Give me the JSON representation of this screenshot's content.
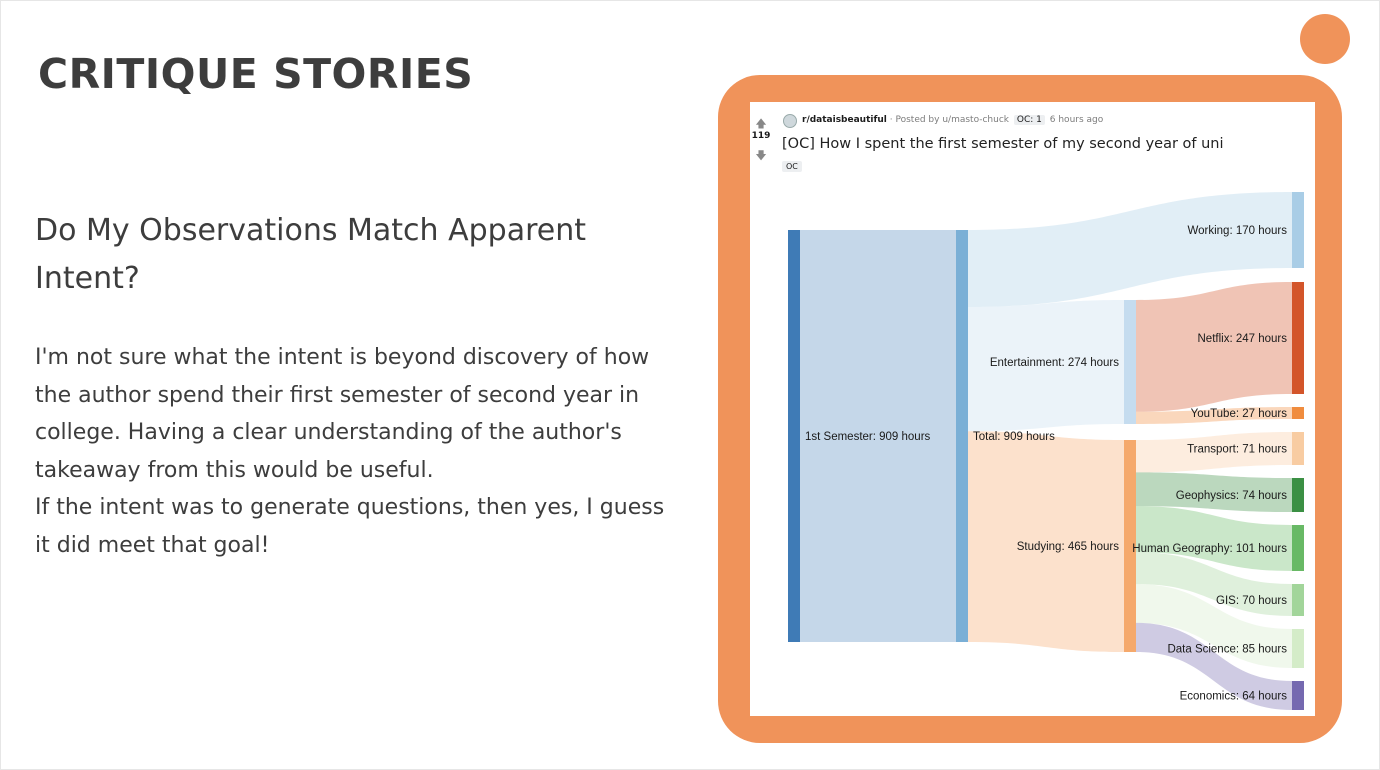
{
  "slide": {
    "title": "CRITIQUE STORIES",
    "subtitle": "Do My Observations Match Apparent Intent?",
    "paragraphs": [
      "I'm not sure what the intent is beyond discovery of how the author spend their first semester of second year in college. Having a clear understanding of the author's takeaway from this would be useful.",
      "If the intent was to generate questions, then yes, I guess it did meet that goal!"
    ],
    "accent_color": "#f0935a"
  },
  "post": {
    "votes": "119",
    "upvote_icon": "arrow-up-icon",
    "downvote_icon": "arrow-down-icon",
    "subreddit": "r/dataisbeautiful",
    "posted_by": "· Posted by u/masto-chuck",
    "user_flair": "OC: 1",
    "time_ago": "6 hours ago",
    "title": "[OC] How I spent the first semester of my second year of uni",
    "tag": "OC"
  },
  "chart_data": {
    "type": "sankey",
    "nodes": [
      {
        "id": "semester",
        "label": "1st Semester: 909 hours",
        "value": 909,
        "color": "#3f7bb6"
      },
      {
        "id": "total",
        "label": "Total: 909 hours",
        "value": 909,
        "color": "#7aafd6"
      },
      {
        "id": "working",
        "label": "Working: 170 hours",
        "value": 170,
        "color": "#a9cde6"
      },
      {
        "id": "entertainment",
        "label": "Entertainment: 274 hours",
        "value": 274,
        "color": "#c5dcef"
      },
      {
        "id": "studying",
        "label": "Studying: 465 hours",
        "value": 465,
        "color": "#f5a96c"
      },
      {
        "id": "netflix",
        "label": "Netflix: 247 hours",
        "value": 247,
        "color": "#d3552a"
      },
      {
        "id": "youtube",
        "label": "YouTube: 27 hours",
        "value": 27,
        "color": "#f08c3e"
      },
      {
        "id": "transport",
        "label": "Transport: 71 hours",
        "value": 71,
        "color": "#f8cca2"
      },
      {
        "id": "geophysics",
        "label": "Geophysics: 74 hours",
        "value": 74,
        "color": "#3b9044"
      },
      {
        "id": "humangeo",
        "label": "Human Geography: 101 hours",
        "value": 101,
        "color": "#68b965"
      },
      {
        "id": "gis",
        "label": "GIS: 70 hours",
        "value": 70,
        "color": "#a2d59a"
      },
      {
        "id": "datascience",
        "label": "Data Science: 85 hours",
        "value": 85,
        "color": "#d4ecc8"
      },
      {
        "id": "economics",
        "label": "Economics: 64 hours",
        "value": 64,
        "color": "#7569b0"
      }
    ],
    "links": [
      {
        "source": "semester",
        "target": "total",
        "value": 909
      },
      {
        "source": "total",
        "target": "working",
        "value": 170
      },
      {
        "source": "total",
        "target": "entertainment",
        "value": 274
      },
      {
        "source": "total",
        "target": "studying",
        "value": 465
      },
      {
        "source": "entertainment",
        "target": "netflix",
        "value": 247
      },
      {
        "source": "entertainment",
        "target": "youtube",
        "value": 27
      },
      {
        "source": "studying",
        "target": "transport",
        "value": 71
      },
      {
        "source": "studying",
        "target": "geophysics",
        "value": 74
      },
      {
        "source": "studying",
        "target": "humangeo",
        "value": 101
      },
      {
        "source": "studying",
        "target": "gis",
        "value": 70
      },
      {
        "source": "studying",
        "target": "datascience",
        "value": 85
      },
      {
        "source": "studying",
        "target": "economics",
        "value": 64
      }
    ]
  }
}
